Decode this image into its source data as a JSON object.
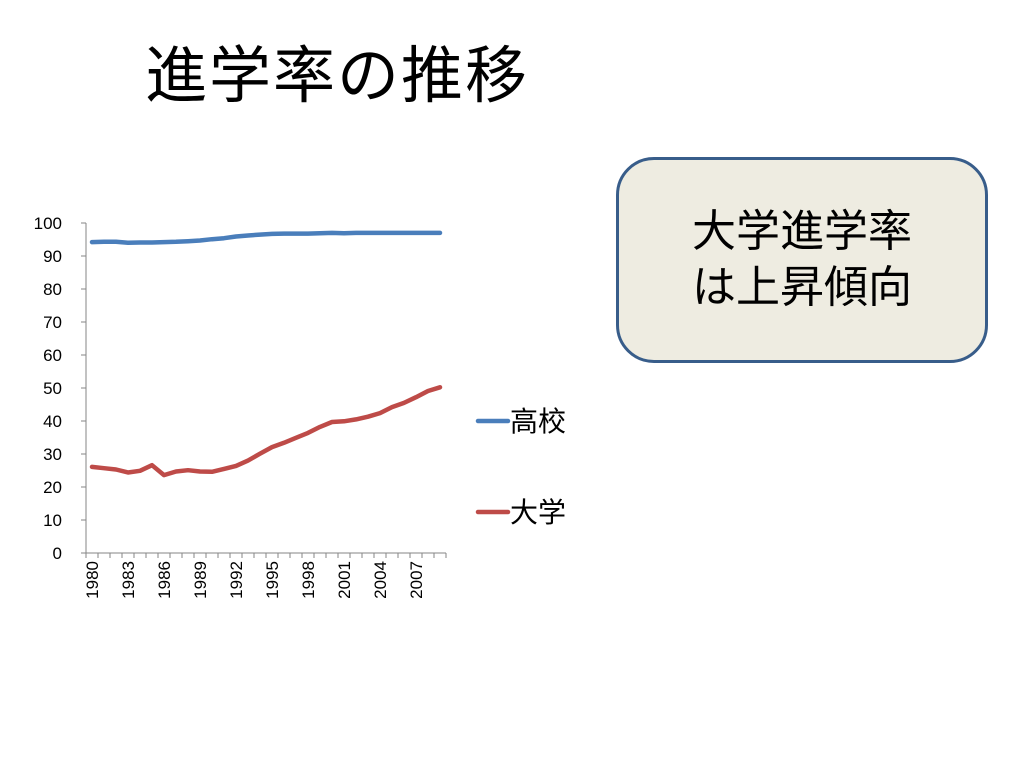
{
  "slide": {
    "title": "進学率の推移"
  },
  "callout": {
    "lines": [
      "大学進学率",
      "は上昇傾向"
    ],
    "fill_color": "#eeece1",
    "border_color": "#385d8a"
  },
  "chart_data": {
    "type": "line",
    "title": "",
    "xlabel": "",
    "ylabel": "",
    "ylim": [
      0,
      100
    ],
    "yticks": [
      "0",
      "10",
      "20",
      "30",
      "40",
      "50",
      "60",
      "70",
      "80",
      "90",
      "100"
    ],
    "x": [
      1980,
      1981,
      1982,
      1983,
      1984,
      1985,
      1986,
      1987,
      1988,
      1989,
      1990,
      1991,
      1992,
      1993,
      1994,
      1995,
      1996,
      1997,
      1998,
      1999,
      2000,
      2001,
      2002,
      2003,
      2004,
      2005,
      2006,
      2007,
      2008,
      2009
    ],
    "xtick_labels": [
      "1980",
      "1983",
      "1986",
      "1989",
      "1992",
      "1995",
      "1998",
      "2001",
      "2004",
      "2007"
    ],
    "grid": false,
    "legend_position": "right",
    "series": [
      {
        "name": "高校",
        "color": "#4a7ebb",
        "values": [
          94.2,
          94.3,
          94.3,
          94.0,
          94.1,
          94.1,
          94.2,
          94.3,
          94.5,
          94.7,
          95.1,
          95.4,
          95.9,
          96.2,
          96.5,
          96.7,
          96.8,
          96.8,
          96.8,
          96.9,
          97.0,
          96.9,
          97.0,
          97.0,
          97.0,
          97.0,
          97.0,
          97.0,
          97.0,
          97.0
        ]
      },
      {
        "name": "大学",
        "color": "#be4b48",
        "values": [
          26.1,
          25.7,
          25.3,
          24.4,
          24.9,
          26.6,
          23.6,
          24.7,
          25.1,
          24.7,
          24.6,
          25.5,
          26.4,
          28.0,
          30.1,
          32.1,
          33.4,
          34.9,
          36.4,
          38.2,
          39.7,
          39.9,
          40.5,
          41.3,
          42.4,
          44.2,
          45.5,
          47.2,
          49.1,
          50.2
        ]
      }
    ]
  }
}
